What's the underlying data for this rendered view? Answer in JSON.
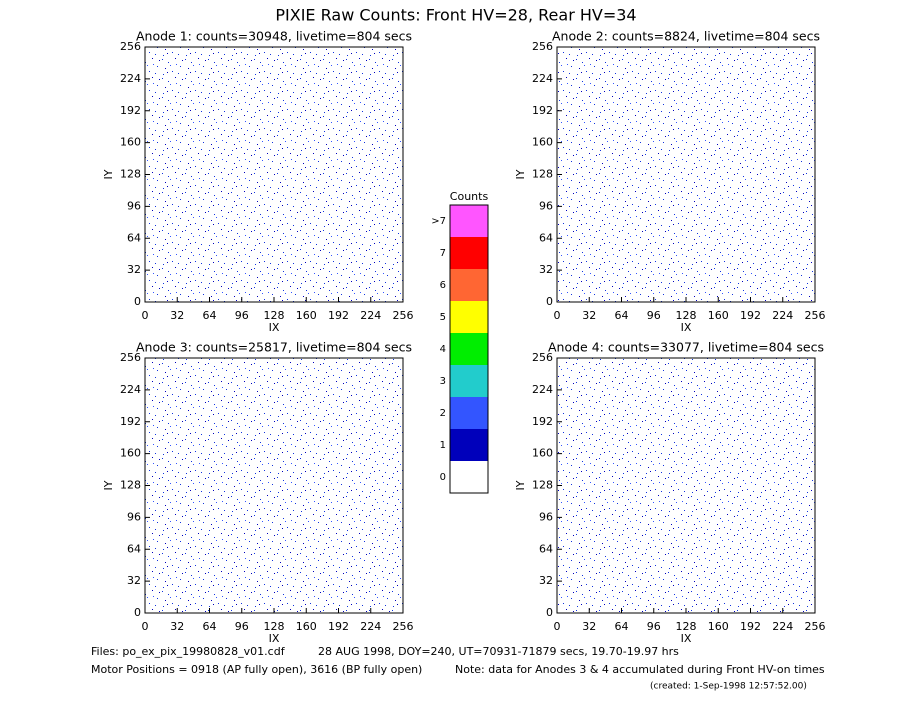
{
  "title": "PIXIE Raw Counts:  Front HV=28, Rear HV=34",
  "chart_data": [
    {
      "type": "heatmap",
      "title": "Anode 1: counts=30948, livetime=804 secs",
      "xlabel": "IX",
      "ylabel": "IY",
      "xlim": [
        0,
        256
      ],
      "ylim": [
        0,
        256
      ],
      "xticks": [
        0,
        32,
        64,
        96,
        128,
        160,
        192,
        224,
        256
      ],
      "yticks": [
        0,
        32,
        64,
        96,
        128,
        160,
        192,
        224,
        256
      ]
    },
    {
      "type": "heatmap",
      "title": "Anode 2: counts=8824, livetime=804 secs",
      "xlabel": "IX",
      "ylabel": "IY",
      "xlim": [
        0,
        256
      ],
      "ylim": [
        0,
        256
      ],
      "xticks": [
        0,
        32,
        64,
        96,
        128,
        160,
        192,
        224,
        256
      ],
      "yticks": [
        0,
        32,
        64,
        96,
        128,
        160,
        192,
        224,
        256
      ]
    },
    {
      "type": "heatmap",
      "title": "Anode 3: counts=25817, livetime=804 secs",
      "xlabel": "IX",
      "ylabel": "IY",
      "xlim": [
        0,
        256
      ],
      "ylim": [
        0,
        256
      ],
      "xticks": [
        0,
        32,
        64,
        96,
        128,
        160,
        192,
        224,
        256
      ],
      "yticks": [
        0,
        32,
        64,
        96,
        128,
        160,
        192,
        224,
        256
      ]
    },
    {
      "type": "heatmap",
      "title": "Anode 4: counts=33077, livetime=804 secs",
      "xlabel": "IX",
      "ylabel": "IY",
      "xlim": [
        0,
        256
      ],
      "ylim": [
        0,
        256
      ],
      "xticks": [
        0,
        32,
        64,
        96,
        128,
        160,
        192,
        224,
        256
      ],
      "yticks": [
        0,
        32,
        64,
        96,
        128,
        160,
        192,
        224,
        256
      ]
    }
  ],
  "colorbar": {
    "title": "Counts",
    "labels": [
      "0",
      "1",
      "2",
      "3",
      "4",
      "5",
      "6",
      "7",
      ">7"
    ],
    "colors": [
      "#ffffff",
      "#0000bb",
      "#3355ff",
      "#22cccc",
      "#00ee00",
      "#ffff00",
      "#ff6633",
      "#ff0000",
      "#ff55ff"
    ]
  },
  "footer": {
    "files": "Files: po_ex_pix_19980828_v01.cdf",
    "date": "28 AUG 1998, DOY=240, UT=70931-71879 secs, 19.70-19.97 hrs",
    "motor": "Motor Positions = 0918 (AP fully open), 3616 (BP fully open)",
    "note": "Note: data for Anodes 3 & 4 accumulated during Front HV-on times",
    "created": "(created:  1-Sep-1998 12:57:52.00)"
  }
}
